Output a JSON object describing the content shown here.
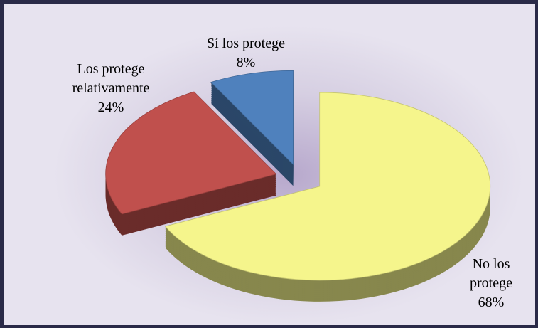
{
  "chart_data": {
    "type": "pie",
    "categories": [
      "Sí los protege",
      "Los protege relativamente",
      "No los protege"
    ],
    "values": [
      8,
      24,
      68
    ],
    "value_labels": [
      "8%",
      "24%",
      "68%"
    ],
    "colors": [
      "#4f81bd",
      "#c0504d",
      "#f5f58c"
    ]
  }
}
